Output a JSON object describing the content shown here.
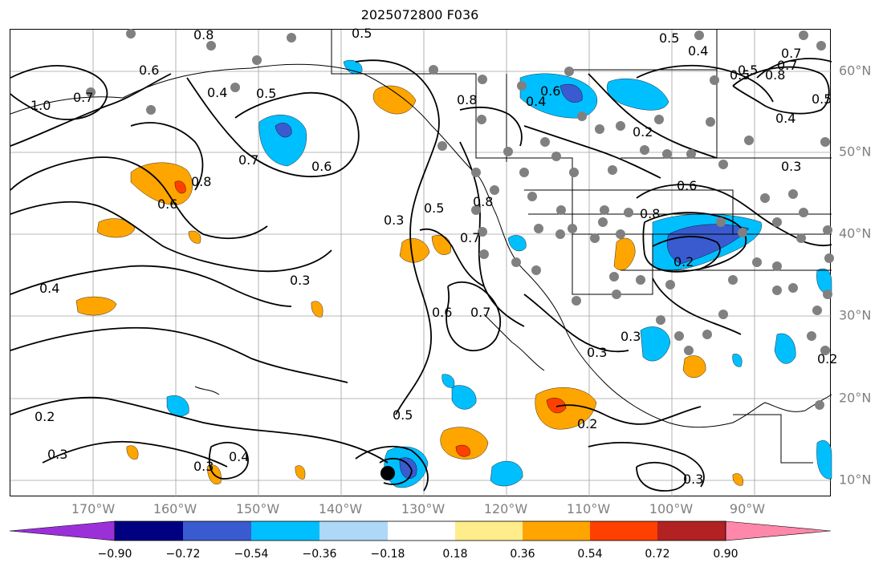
{
  "title": "2025072800 F036",
  "lon_labels": [
    "170°W",
    "160°W",
    "150°W",
    "140°W",
    "130°W",
    "120°W",
    "110°W",
    "100°W",
    "90°W"
  ],
  "lat_labels": [
    "60°N",
    "50°N",
    "40°N",
    "30°N",
    "20°N",
    "10°N"
  ],
  "colorbar": {
    "ticks": [
      "−0.90",
      "−0.72",
      "−0.54",
      "−0.36",
      "−0.18",
      "0.18",
      "0.36",
      "0.54",
      "0.72",
      "0.90"
    ],
    "colors": [
      "#9b30d9",
      "#000080",
      "#3a5bcf",
      "#00bfff",
      "#add8f8",
      "#ffffff",
      "#ffec8b",
      "#ffa500",
      "#ff4000",
      "#b22222",
      "#ff88aa"
    ]
  },
  "contour_labels": [
    "0.8",
    "0.6",
    "0.5",
    "0.4",
    "0.5",
    "0.7",
    "1.0",
    "0.7",
    "0.8",
    "0.5",
    "0.7",
    "0.6",
    "0.8",
    "0.6",
    "0.4",
    "0.3",
    "0.5",
    "0.3",
    "0.4",
    "0.6",
    "0.7",
    "0.7",
    "0.3",
    "0.3",
    "0.2",
    "0.3",
    "0.2",
    "0.3",
    "0.3",
    "0.4",
    "0.5",
    "0.2",
    "0.4",
    "0.6",
    "0.2",
    "0.5",
    "0.8",
    "0.6",
    "0.8",
    "0.8",
    "0.7",
    "0.5",
    "0.4",
    "0.2",
    "0.5",
    "0.3"
  ],
  "colors": {
    "gridline": "#a0a0a0",
    "contour": "#000000",
    "station_dot": "#808080",
    "orange": "#ffa500",
    "red": "#ff4000",
    "light_blue": "#00bfff",
    "blue": "#3a5bcf",
    "yellow": "#ffec8b"
  }
}
